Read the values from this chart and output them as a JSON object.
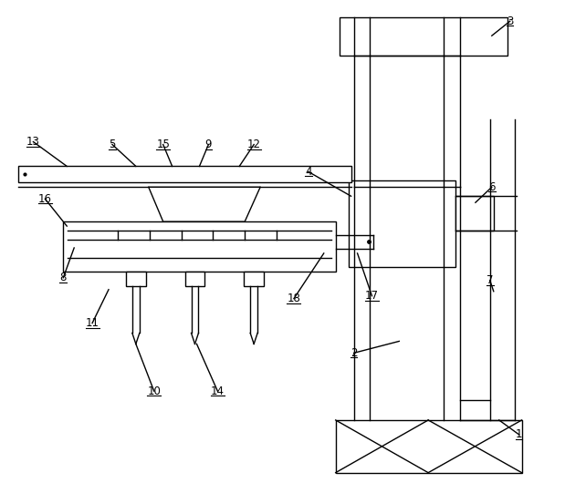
{
  "bg_color": "#ffffff",
  "line_color": "#000000",
  "figsize": [
    6.19,
    5.3
  ],
  "dpi": 100,
  "annotations": [
    [
      "1",
      570,
      478,
      548,
      462
    ],
    [
      "2",
      388,
      388,
      438,
      375
    ],
    [
      "3",
      560,
      22,
      540,
      38
    ],
    [
      "4",
      338,
      188,
      385,
      215
    ],
    [
      "5",
      122,
      158,
      148,
      182
    ],
    [
      "6",
      540,
      205,
      522,
      222
    ],
    [
      "7",
      538,
      308,
      542,
      320
    ],
    [
      "8",
      68,
      305,
      80,
      272
    ],
    [
      "9",
      228,
      158,
      218,
      182
    ],
    [
      "10",
      168,
      430,
      148,
      378
    ],
    [
      "11",
      100,
      355,
      118,
      318
    ],
    [
      "12",
      278,
      158,
      262,
      182
    ],
    [
      "13",
      35,
      155,
      72,
      182
    ],
    [
      "14",
      238,
      430,
      215,
      378
    ],
    [
      "15",
      178,
      158,
      188,
      182
    ],
    [
      "16",
      48,
      218,
      72,
      248
    ],
    [
      "17",
      408,
      325,
      392,
      278
    ],
    [
      "18",
      322,
      328,
      355,
      278
    ]
  ]
}
